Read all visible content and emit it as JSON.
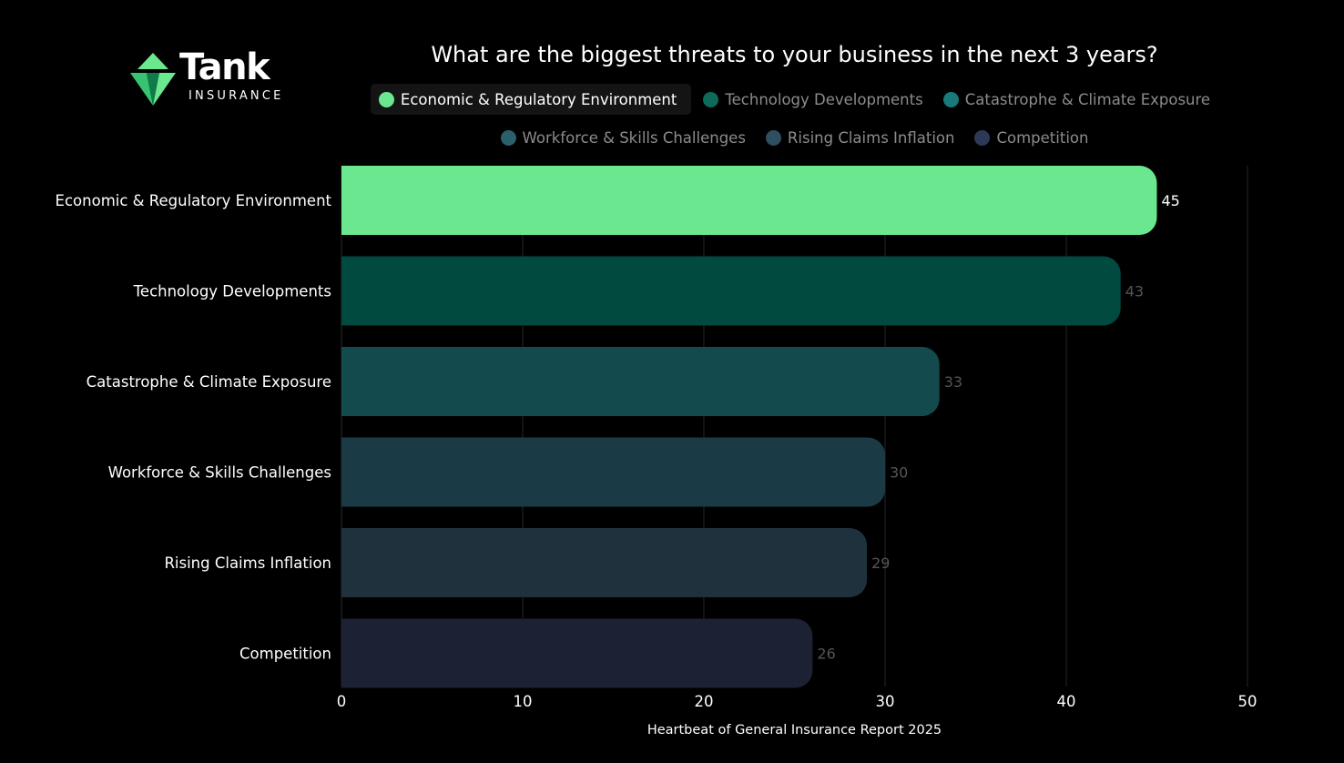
{
  "logo": {
    "name": "Tank",
    "subtitle": "INSURANCE",
    "colors": {
      "light": "#6be88f",
      "mid": "#37c472",
      "dark": "#0f7a4a"
    }
  },
  "chart_data": {
    "type": "bar",
    "orientation": "horizontal",
    "title": "What are the biggest threats to your business in the next 3 years?",
    "categories": [
      "Economic & Regulatory Environment",
      "Technology Developments",
      "Catastrophe & Climate Exposure",
      "Workforce & Skills Challenges",
      "Rising Claims Inflation",
      "Competition"
    ],
    "values": [
      45,
      43,
      33,
      30,
      29,
      26
    ],
    "colors": [
      "#6be88f",
      "#004a40",
      "#134a4d",
      "#1a3b45",
      "#1e313d",
      "#1c2233"
    ],
    "legend_dot_colors": [
      "#6be88f",
      "#0d6b5a",
      "#197a7c",
      "#2a5f6c",
      "#2f4e5f",
      "#2c3a58"
    ],
    "active_index": 0,
    "xlabel": "Heartbeat of General Insurance Report 2025",
    "ylabel": "",
    "xlim": [
      0,
      50
    ],
    "xticks": [
      "0",
      "10",
      "20",
      "30",
      "40",
      "50"
    ],
    "grid": true,
    "legend_position": "top"
  }
}
